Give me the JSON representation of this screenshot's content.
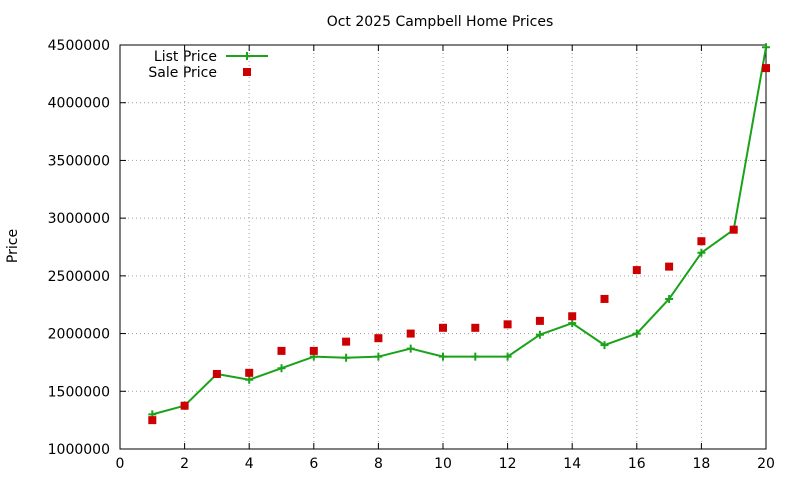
{
  "chart_data": {
    "type": "line",
    "title": "Oct 2025 Campbell Home Prices",
    "xlabel": "",
    "ylabel": "Price",
    "xlim": [
      0,
      20
    ],
    "ylim": [
      1000000,
      4500000
    ],
    "x_ticks": [
      "0",
      "2",
      "4",
      "6",
      "8",
      "10",
      "12",
      "14",
      "16",
      "18",
      "20"
    ],
    "y_ticks": [
      "1000000",
      "1500000",
      "2000000",
      "2500000",
      "3000000",
      "3500000",
      "4000000",
      "4500000"
    ],
    "grid": true,
    "legend_position": "top-left",
    "series": [
      {
        "name": "List Price",
        "style": "line-with-plus-markers",
        "color": "#1aa31a",
        "x": [
          1,
          2,
          3,
          4,
          5,
          6,
          7,
          8,
          9,
          10,
          11,
          12,
          13,
          14,
          15,
          16,
          17,
          18,
          19,
          20
        ],
        "values": [
          1300000,
          1375000,
          1650000,
          1600000,
          1700000,
          1800000,
          1790000,
          1800000,
          1870000,
          1800000,
          1800000,
          1800000,
          1990000,
          2090000,
          1900000,
          2000000,
          2300000,
          2700000,
          2900000,
          4480000
        ]
      },
      {
        "name": "Sale Price",
        "style": "square-points",
        "color": "#cc0000",
        "x": [
          1,
          2,
          3,
          4,
          5,
          6,
          7,
          8,
          9,
          10,
          11,
          12,
          13,
          14,
          15,
          16,
          17,
          18,
          19,
          20
        ],
        "values": [
          1250000,
          1375000,
          1650000,
          1660000,
          1850000,
          1850000,
          1930000,
          1960000,
          2000000,
          2050000,
          2050000,
          2080000,
          2110000,
          2150000,
          2300000,
          2550000,
          2580000,
          2800000,
          2900000,
          4300000
        ]
      }
    ]
  }
}
